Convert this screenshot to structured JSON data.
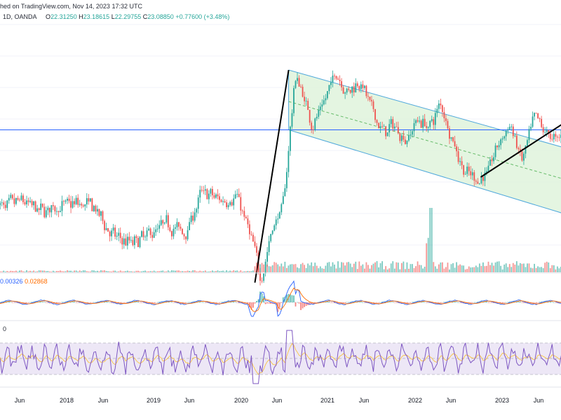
{
  "header": {
    "published": "hed on TradingView.com, Nov 14, 2023 17:32 UTC",
    "interval": "1D, OANDA",
    "open_label": "O",
    "open": "22.31250",
    "high_label": "H",
    "high": "23.18615",
    "low_label": "L",
    "low": "22.29755",
    "close_label": "C",
    "close": "23.08850",
    "change": "+0.77600 (+3.48%)"
  },
  "macd_panel": {
    "values": [
      "0.00326",
      "0.02868"
    ]
  },
  "rsi_panel": {
    "label": "0"
  },
  "colors": {
    "up": "#26a69a",
    "down": "#ef5350",
    "channel_fill": "#dff3dc",
    "channel_line": "#4fa8dc",
    "hline": "#2962ff",
    "macd": "#2962ff",
    "signal": "#ff6d00",
    "rsi": "#7e57c2",
    "rsi_band": "#ede7f6"
  },
  "chart_data": {
    "type": "candlestick",
    "x_axis_labels": [
      "Jun",
      "2018",
      "Jun",
      "2019",
      "Jun",
      "2020",
      "Jun",
      "2021",
      "Jun",
      "2022",
      "Jun",
      "2023",
      "Jun"
    ],
    "price_path": [
      {
        "t": 0,
        "p": 20.2
      },
      {
        "t": 0.03,
        "p": 19.2
      },
      {
        "t": 0.06,
        "p": 19.7
      },
      {
        "t": 0.09,
        "p": 19.0
      },
      {
        "t": 0.12,
        "p": 19.3
      },
      {
        "t": 0.15,
        "p": 19.5
      },
      {
        "t": 0.18,
        "p": 19.4
      },
      {
        "t": 0.22,
        "p": 17.3
      },
      {
        "t": 0.25,
        "p": 17.0
      },
      {
        "t": 0.28,
        "p": 17.6
      },
      {
        "t": 0.31,
        "p": 18.3
      },
      {
        "t": 0.34,
        "p": 17.6
      },
      {
        "t": 0.37,
        "p": 20.3
      },
      {
        "t": 0.4,
        "p": 19.7
      },
      {
        "t": 0.43,
        "p": 20.0
      },
      {
        "t": 0.46,
        "p": 16.5
      },
      {
        "t": 0.47,
        "p": 14.5
      },
      {
        "t": 0.49,
        "p": 18.0
      },
      {
        "t": 0.51,
        "p": 19.5
      },
      {
        "t": 0.52,
        "p": 24.0
      },
      {
        "t": 0.53,
        "p": 28.0
      },
      {
        "t": 0.55,
        "p": 25.5
      },
      {
        "t": 0.56,
        "p": 24.5
      },
      {
        "t": 0.58,
        "p": 26.0
      },
      {
        "t": 0.6,
        "p": 28.0
      },
      {
        "t": 0.62,
        "p": 26.5
      },
      {
        "t": 0.64,
        "p": 27.5
      },
      {
        "t": 0.66,
        "p": 25.5
      },
      {
        "t": 0.68,
        "p": 24.0
      },
      {
        "t": 0.7,
        "p": 24.5
      },
      {
        "t": 0.72,
        "p": 23.5
      },
      {
        "t": 0.74,
        "p": 25.0
      },
      {
        "t": 0.76,
        "p": 24.3
      },
      {
        "t": 0.78,
        "p": 26.0
      },
      {
        "t": 0.8,
        "p": 23.5
      },
      {
        "t": 0.82,
        "p": 21.5
      },
      {
        "t": 0.84,
        "p": 21.0
      },
      {
        "t": 0.86,
        "p": 21.5
      },
      {
        "t": 0.88,
        "p": 23.5
      },
      {
        "t": 0.9,
        "p": 24.5
      },
      {
        "t": 0.92,
        "p": 22.0
      },
      {
        "t": 0.94,
        "p": 25.0
      },
      {
        "t": 0.96,
        "p": 24.0
      },
      {
        "t": 0.98,
        "p": 23.5
      },
      {
        "t": 1.0,
        "p": 25.0
      }
    ],
    "regression_channel": {
      "start_t": 0.52,
      "end_t": 1.0,
      "upper": [
        28.0,
        23.0
      ],
      "mid": [
        26.0,
        21.0
      ],
      "lower": [
        24.2,
        18.8
      ]
    },
    "horizontal_level": 24.2,
    "trendlines": [
      {
        "from": [
          0.462,
          14.5
        ],
        "to": [
          0.52,
          28.0
        ]
      },
      {
        "from": [
          0.85,
          21.2
        ],
        "to": [
          1.0,
          24.8
        ]
      }
    ]
  }
}
